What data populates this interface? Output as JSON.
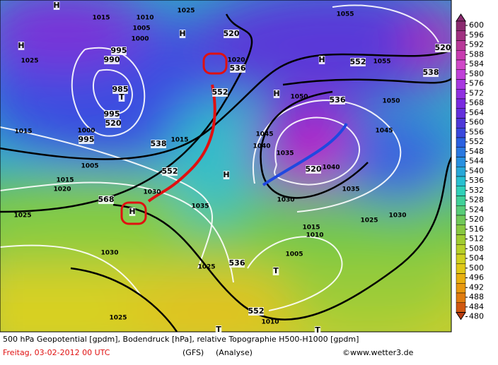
{
  "map": {
    "labels": [
      "H",
      "1015",
      "1010",
      "1025",
      "1005",
      "1000",
      "H",
      "995",
      "990",
      "985",
      "T",
      "995",
      "520",
      "1000",
      "995",
      "1005",
      "1015",
      "1020",
      "1025",
      "538",
      "552",
      "1030",
      "568",
      "H",
      "1030",
      "1025",
      "1015",
      "1025",
      "H",
      "520",
      "1020",
      "536",
      "552",
      "1015",
      "1035",
      "H",
      "1025",
      "536",
      "552",
      "1010",
      "T",
      "1005",
      "1010",
      "1015",
      "1030",
      "1035",
      "1040",
      "520",
      "536",
      "1045",
      "1040",
      "1035",
      "1050",
      "H",
      "H",
      "552",
      "1055",
      "1055",
      "1050",
      "1045",
      "1030",
      "1025",
      "538",
      "520",
      "T",
      "T"
    ]
  },
  "colorbar": {
    "labels": [
      600,
      596,
      592,
      588,
      584,
      580,
      576,
      572,
      568,
      564,
      560,
      556,
      552,
      548,
      544,
      540,
      536,
      532,
      528,
      524,
      520,
      516,
      512,
      508,
      504,
      500,
      496,
      492,
      488,
      484,
      480
    ]
  },
  "footer": {
    "line1": "500 hPa Geopotential [gpdm], Bodendruck [hPa], relative Topographie H500-H1000 [gpdm]",
    "date": "Freitag, 03-02-2012  00 UTC",
    "model": "(GFS)",
    "run": "(Analyse)",
    "credit": "©www.wetter3.de"
  }
}
